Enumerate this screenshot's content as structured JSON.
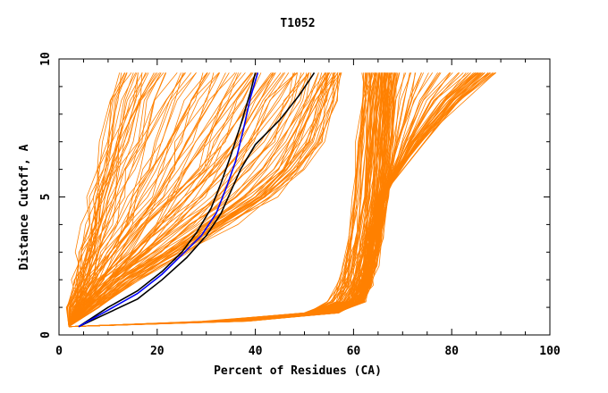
{
  "chart_data": {
    "type": "line",
    "title": "T1052",
    "xlabel": "Percent of Residues (CA)",
    "ylabel": "Distance Cutoff, A",
    "xlim": [
      0,
      100
    ],
    "ylim": [
      0,
      10
    ],
    "x_ticks": [
      "0",
      "20",
      "40",
      "60",
      "80",
      "100"
    ],
    "y_ticks": [
      "0",
      "5",
      "10"
    ],
    "grid": false,
    "colors": {
      "bulk": "#ff8000",
      "highlight_black": "#000000",
      "highlight_blue": "#0000ff"
    },
    "bundle": {
      "description": "orange GDT curves for all models",
      "high_cluster": [
        {
          "x": [
            2,
            30,
            50,
            55,
            57,
            58,
            59,
            60,
            61,
            61.5,
            62
          ],
          "y": [
            0.3,
            0.5,
            0.8,
            1.2,
            1.8,
            2.5,
            3.5,
            5,
            7,
            8.5,
            9.5
          ]
        },
        {
          "x": [
            2,
            33,
            52,
            58,
            60,
            61,
            62,
            63,
            64,
            64.5,
            65
          ],
          "y": [
            0.3,
            0.5,
            0.8,
            1.2,
            1.8,
            2.5,
            3.5,
            5,
            7,
            8.5,
            9.5
          ]
        },
        {
          "x": [
            2,
            36,
            55,
            60,
            62,
            63,
            64,
            65,
            66,
            66.5,
            67
          ],
          "y": [
            0.3,
            0.5,
            0.8,
            1.2,
            1.8,
            2.5,
            3.5,
            5,
            7,
            8.5,
            9.5
          ]
        },
        {
          "x": [
            2,
            38,
            57,
            62,
            63.5,
            64.5,
            65.5,
            66.5,
            67.5,
            68,
            68.5
          ],
          "y": [
            0.3,
            0.5,
            0.8,
            1.2,
            1.8,
            2.5,
            3.5,
            5,
            7,
            8.5,
            9.5
          ]
        },
        {
          "x": [
            2,
            35,
            54,
            61,
            62,
            63,
            64,
            66,
            72,
            78,
            84
          ],
          "y": [
            0.3,
            0.5,
            0.8,
            1.2,
            1.8,
            2.5,
            3.5,
            5,
            7,
            8.5,
            9.5
          ]
        },
        {
          "x": [
            2,
            34,
            53,
            60,
            61,
            62,
            63,
            65,
            74,
            82,
            89
          ],
          "y": [
            0.3,
            0.5,
            0.8,
            1.2,
            1.8,
            2.5,
            3.5,
            5,
            7,
            8.5,
            9.5
          ]
        }
      ],
      "mid_cluster": [
        {
          "x": [
            2,
            8,
            16,
            26,
            35,
            44,
            50,
            54,
            56,
            57
          ],
          "y": [
            0.3,
            1,
            2,
            3,
            4,
            5,
            6,
            7,
            8.5,
            9.5
          ]
        },
        {
          "x": [
            2,
            6,
            13,
            22,
            30,
            38,
            44,
            48,
            52,
            55
          ],
          "y": [
            0.3,
            1,
            2,
            3,
            4,
            5,
            6,
            7,
            8.5,
            9.5
          ]
        },
        {
          "x": [
            2,
            5,
            10,
            16,
            22,
            28,
            33,
            37,
            42,
            46
          ],
          "y": [
            0.3,
            1,
            2,
            3,
            4,
            5,
            6,
            7,
            8.5,
            9.5
          ]
        },
        {
          "x": [
            2,
            4,
            8,
            12,
            16,
            20,
            24,
            27,
            31,
            35
          ],
          "y": [
            0.3,
            1,
            2,
            3,
            4,
            5,
            6,
            7,
            8.5,
            9.5
          ]
        },
        {
          "x": [
            2,
            3,
            5,
            7,
            9,
            11,
            13,
            15,
            18,
            21
          ],
          "y": [
            0.3,
            1,
            2,
            3,
            4,
            5,
            6,
            7,
            8.5,
            9.5
          ]
        },
        {
          "x": [
            2,
            2.5,
            3.5,
            4.5,
            5.5,
            6.5,
            7.5,
            8.5,
            10,
            12
          ],
          "y": [
            0.3,
            1,
            2,
            3,
            4,
            5,
            6,
            7,
            8.5,
            9.5
          ]
        }
      ]
    },
    "highlighted": [
      {
        "color": "#000000",
        "x": [
          4,
          10,
          16,
          21,
          25,
          28,
          31,
          33,
          35,
          37,
          39,
          40
        ],
        "y": [
          0.3,
          1,
          1.6,
          2.3,
          3,
          3.7,
          4.6,
          5.5,
          6.5,
          7.6,
          8.8,
          9.5
        ]
      },
      {
        "color": "#000000",
        "x": [
          4,
          10,
          16,
          21,
          26,
          30,
          33,
          35,
          37,
          40,
          45,
          49,
          52
        ],
        "y": [
          0.3,
          0.8,
          1.3,
          2,
          2.8,
          3.6,
          4.4,
          5.2,
          6,
          6.9,
          7.8,
          8.7,
          9.5
        ]
      },
      {
        "color": "#0000ff",
        "x": [
          4,
          10,
          16,
          21,
          25,
          29,
          32,
          34,
          36,
          37.5,
          39,
          40.5
        ],
        "y": [
          0.3,
          0.9,
          1.5,
          2.2,
          2.9,
          3.6,
          4.4,
          5.3,
          6.3,
          7.4,
          8.6,
          9.5
        ]
      }
    ]
  }
}
